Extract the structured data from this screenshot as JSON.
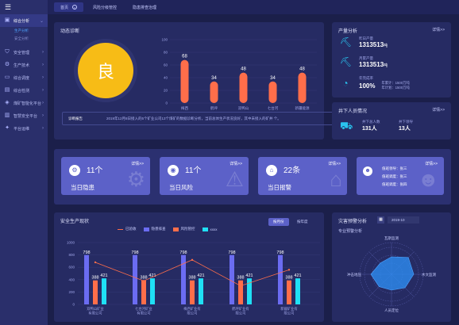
{
  "sidebar": {
    "menu_icon": "menu-icon",
    "items": [
      {
        "label": "综合分析",
        "icon": "dashboard-icon",
        "active": true
      },
      {
        "label": "安全管理",
        "icon": "shield-icon"
      },
      {
        "label": "生产技术",
        "icon": "gear-icon"
      },
      {
        "label": "综合调度",
        "icon": "monitor-icon"
      },
      {
        "label": "综合检测",
        "icon": "chart-icon"
      },
      {
        "label": "煤矿智能化平台",
        "icon": "cube-icon"
      },
      {
        "label": "智慧安全平台",
        "icon": "server-icon"
      },
      {
        "label": "平台运维",
        "icon": "tools-icon"
      }
    ],
    "subitems": [
      "生产分析",
      "安全分析"
    ]
  },
  "topbar": {
    "tabs": [
      "首页",
      "风险分级管控",
      "隐患排查治理"
    ]
  },
  "diagnosis": {
    "title": "动态诊断",
    "grade": "良",
    "note_label": "诊断报告",
    "note_text": "2019年12月8日接入的5个矿业公司13个煤矿的数据诊断分析，当前总体生产状况良好，其中未接入的矿井 个。",
    "chart": {
      "categories": [
        "梅西",
        "鹤坪",
        "双鸭山",
        "七台河",
        "新疆能源"
      ],
      "values": [
        68,
        34,
        48,
        34,
        48
      ],
      "yticks": [
        "100",
        "80",
        "60",
        "40",
        "20",
        "0"
      ]
    }
  },
  "production": {
    "title": "产量分析",
    "more": "详情>>",
    "rows": [
      {
        "label": "昨日产量",
        "value": "1313513",
        "unit": "吨"
      },
      {
        "label": "月累产量",
        "value": "1313513",
        "unit": "吨"
      },
      {
        "label": "年完成率",
        "value": "100%",
        "extra1": "年累计：1500万吨",
        "extra2": "年计划：1500万吨"
      }
    ]
  },
  "personnel": {
    "title": "井下人员情况",
    "more": "详情>>",
    "stats": [
      {
        "label": "井下总人数",
        "value": "131人"
      },
      {
        "label": "井下领导",
        "value": "13人"
      }
    ]
  },
  "cards": [
    {
      "count": "11个",
      "label": "当日隐患",
      "more": "详情>>"
    },
    {
      "count": "11个",
      "label": "当日风险",
      "more": "详情>>"
    },
    {
      "count": "22条",
      "label": "当日报警",
      "more": "详情>>"
    }
  ],
  "duty": {
    "more": "详情>>",
    "rows": [
      "值班领导：张三",
      "值班调度：张三",
      "值班调度：张四"
    ]
  },
  "safety": {
    "title": "安全生产现状",
    "legend": [
      "已验收",
      "隐患排查",
      "风险管控",
      "xxxx"
    ],
    "btn_week": "按月份",
    "btn_year": "按年度",
    "yticks": [
      "1000",
      "800",
      "600",
      "400",
      "200",
      "0"
    ],
    "chart_data": {
      "type": "bar",
      "categories": [
        "双鸭山矿业有限公司",
        "七台河矿业有限公司",
        "梅西矿业有限公司",
        "鹤坪矿业有限公司",
        "新疆矿业有限公司"
      ],
      "series": [
        {
          "name": "隐患排查",
          "values": [
            798,
            798,
            798,
            798,
            798
          ]
        },
        {
          "name": "风险管控",
          "values": [
            388,
            388,
            388,
            388,
            388
          ]
        },
        {
          "name": "xxxx",
          "values": [
            421,
            421,
            421,
            421,
            421
          ]
        }
      ],
      "line": {
        "name": "已验收",
        "values": [
          680,
          380,
          720,
          300,
          560
        ]
      },
      "ylim": [
        0,
        1000
      ]
    }
  },
  "disaster": {
    "title": "灾害预警分析",
    "sub": "专业预警分析",
    "date": "2019-10",
    "axes": [
      "瓦斯监测",
      "水文监测",
      "人员定位",
      "冲击地压"
    ],
    "values": [
      0.55,
      0.75,
      0.7,
      0.6,
      0.5,
      0.55,
      0.65,
      0.5
    ]
  },
  "colors": {
    "accent": "#5c61c8",
    "bar_orange": "#ff6e4a",
    "bar_purple": "#6b6cf2",
    "bar_cyan": "#1fe0f5",
    "grade": "#f7bc16"
  }
}
